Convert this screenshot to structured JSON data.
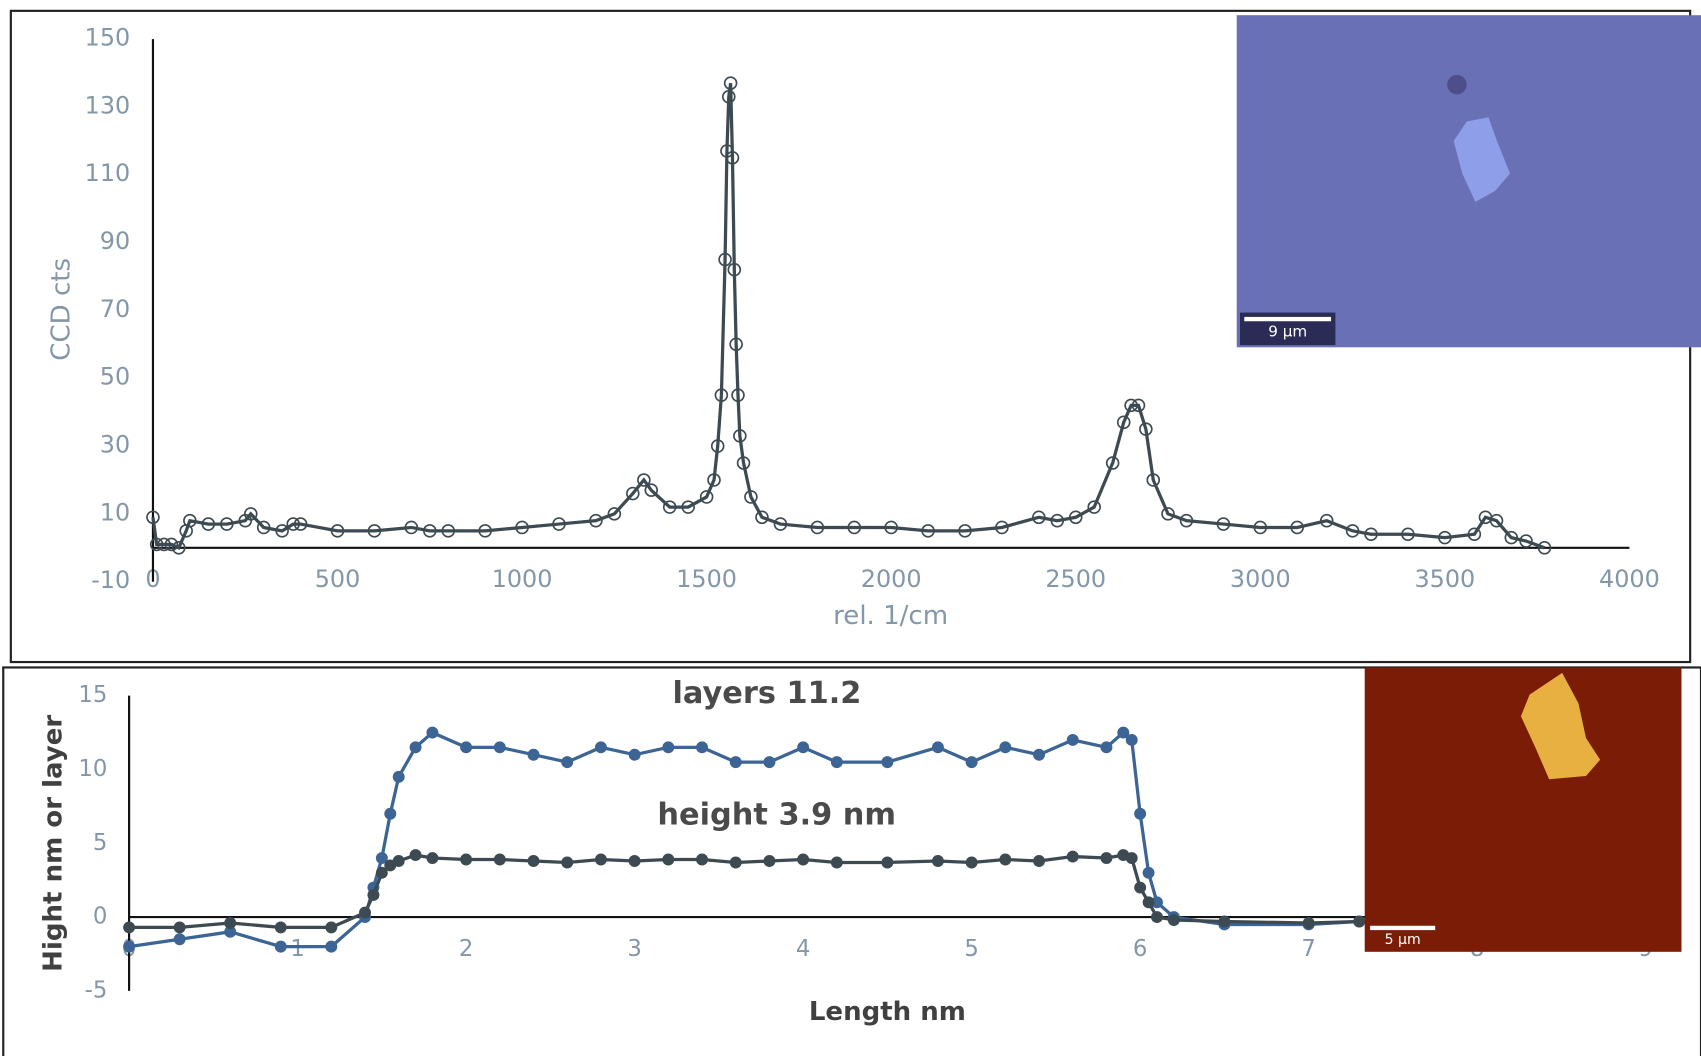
{
  "chart_data": [
    {
      "type": "line",
      "x_label": "rel. 1/cm",
      "y_label": "CCD cts",
      "inset_scale_label": "9 µm",
      "x": [
        0,
        10,
        30,
        50,
        70,
        90,
        100,
        150,
        200,
        250,
        265,
        300,
        350,
        380,
        400,
        500,
        600,
        700,
        750,
        800,
        900,
        1000,
        1100,
        1200,
        1250,
        1300,
        1330,
        1350,
        1400,
        1450,
        1500,
        1520,
        1530,
        1540,
        1550,
        1555,
        1560,
        1565,
        1570,
        1575,
        1580,
        1585,
        1590,
        1600,
        1620,
        1650,
        1700,
        1800,
        1900,
        2000,
        2100,
        2200,
        2300,
        2400,
        2450,
        2500,
        2550,
        2600,
        2630,
        2650,
        2670,
        2690,
        2710,
        2750,
        2800,
        2900,
        3000,
        3100,
        3180,
        3250,
        3300,
        3400,
        3500,
        3580,
        3610,
        3640,
        3680,
        3720,
        3770
      ],
      "series": [
        {
          "color": "#3d4a52",
          "marker": "open-circle",
          "values": [
            9,
            1,
            1,
            1,
            0,
            5,
            8,
            7,
            7,
            8,
            10,
            6,
            5,
            7,
            7,
            5,
            5,
            6,
            5,
            5,
            5,
            6,
            7,
            8,
            10,
            16,
            20,
            17,
            12,
            12,
            15,
            20,
            30,
            45,
            85,
            117,
            133,
            137,
            115,
            82,
            60,
            45,
            33,
            25,
            15,
            9,
            7,
            6,
            6,
            6,
            5,
            5,
            6,
            9,
            8,
            9,
            12,
            25,
            37,
            42,
            42,
            35,
            20,
            10,
            8,
            7,
            6,
            6,
            8,
            5,
            4,
            4,
            3,
            4,
            9,
            8,
            3,
            2,
            0
          ]
        }
      ],
      "xlim": [
        0,
        4000
      ],
      "xticks": [
        0,
        500,
        1000,
        1500,
        2000,
        2500,
        3000,
        3500,
        4000
      ],
      "ylim": [
        -10,
        150
      ],
      "yticks": [
        -10,
        10,
        30,
        50,
        70,
        90,
        110,
        130,
        150
      ]
    },
    {
      "type": "line",
      "x_label": "Length nm",
      "y_label": "Hight nm or layer",
      "inset_scale_label": "5 µm",
      "annotations": [
        "layers 11.2",
        "height 3.9 nm"
      ],
      "x": [
        0,
        0.3,
        0.6,
        0.9,
        1.2,
        1.4,
        1.45,
        1.5,
        1.55,
        1.6,
        1.7,
        1.8,
        2.0,
        2.2,
        2.4,
        2.6,
        2.8,
        3.0,
        3.2,
        3.4,
        3.6,
        3.8,
        4.0,
        4.2,
        4.5,
        4.8,
        5.0,
        5.2,
        5.4,
        5.6,
        5.8,
        5.9,
        5.95,
        6.0,
        6.05,
        6.1,
        6.2,
        6.5,
        7.0,
        7.3
      ],
      "series": [
        {
          "color": "#3c6494",
          "marker": "filled-circle",
          "values": [
            -2,
            -1.5,
            -1,
            -2,
            -2,
            0,
            2,
            4,
            7,
            9.5,
            11.5,
            12.5,
            11.5,
            11.5,
            11,
            10.5,
            11.5,
            11,
            11.5,
            11.5,
            10.5,
            10.5,
            11.5,
            10.5,
            10.5,
            11.5,
            10.5,
            11.5,
            11,
            12,
            11.5,
            12.5,
            12,
            7,
            3,
            1,
            0,
            -0.5,
            -0.5,
            -0.3
          ]
        },
        {
          "color": "#3d4a52",
          "marker": "filled-circle",
          "values": [
            -0.7,
            -0.7,
            -0.4,
            -0.7,
            -0.7,
            0.3,
            1.5,
            3,
            3.5,
            3.8,
            4.2,
            4,
            3.9,
            3.9,
            3.8,
            3.7,
            3.9,
            3.8,
            3.9,
            3.9,
            3.7,
            3.8,
            3.9,
            3.7,
            3.7,
            3.8,
            3.7,
            3.9,
            3.8,
            4.1,
            4,
            4.2,
            4,
            2,
            1,
            0,
            -0.2,
            -0.3,
            -0.4,
            -0.3
          ]
        }
      ],
      "xlim": [
        0,
        9
      ],
      "xticks": [
        0,
        1,
        2,
        3,
        4,
        5,
        6,
        7,
        8,
        9
      ],
      "ylim": [
        -5,
        15
      ],
      "yticks": [
        -5,
        0,
        5,
        10,
        15
      ]
    }
  ]
}
